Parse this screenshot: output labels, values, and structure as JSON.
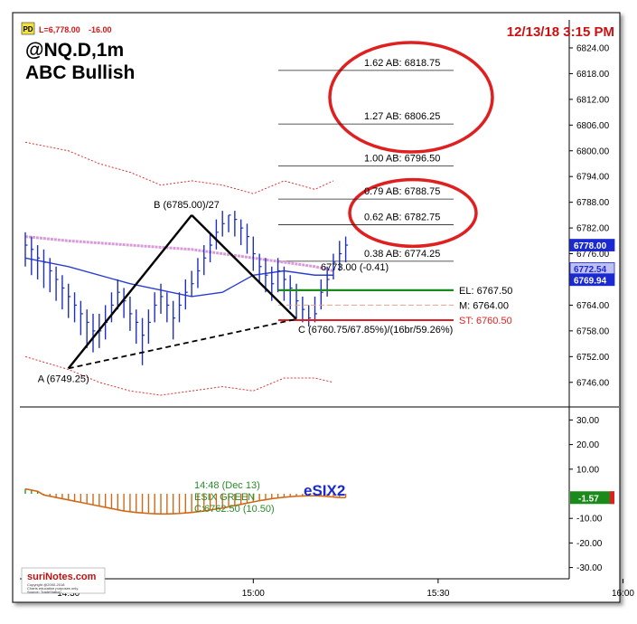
{
  "header": {
    "badge": "PD",
    "last_price": "L=6,778.00",
    "change": "-16.00",
    "timestamp": "12/13/18 3:15 PM",
    "symbol": "@NQ.D,1m",
    "pattern": "ABC Bullish"
  },
  "indicator": {
    "name": "eSIX2",
    "info_time": "14:48 (Dec 13)",
    "info_state": "ESIX GREEN",
    "info_price": "C:6762.50 (10.50)"
  },
  "logo": {
    "brand": "suriNotes.com",
    "line1": "Copyright @2000-2018",
    "line2": "Charts education purposes only.",
    "line3": "Source: TradeStation"
  },
  "colors": {
    "price_bar": "#1f2fbf",
    "ma_blue": "#2a3fd0",
    "ma_pink": "#d99ad9",
    "band_red": "#e03030",
    "pattern_line": "#000000",
    "entry_green": "#1a8a1a",
    "mid_salmon": "#e8a090",
    "stop_red": "#e02020",
    "osc_orange": "#d06a1a",
    "osc_green": "#2a9a2a",
    "highlight_red": "#e02020",
    "timestamp_red": "#cc1010"
  },
  "chart_data": [
    {
      "type": "line",
      "title": "@NQ.D,1m",
      "subtitle": "ABC Bullish",
      "x_ticks": [
        "14:30",
        "15:00",
        "15:30",
        "16:00"
      ],
      "y_ticks": [
        6746,
        6752,
        6758,
        6764,
        6770,
        6776,
        6782,
        6788,
        6794,
        6800,
        6806,
        6812,
        6818,
        6824
      ],
      "ylim": [
        6743,
        6828
      ],
      "xlim_minutes_after_1400": [
        23,
        106
      ],
      "grid": false,
      "price_path": {
        "x_minutes": [
          23,
          24,
          25,
          26,
          27,
          28,
          29,
          30,
          31,
          32,
          33,
          34,
          35,
          36,
          37,
          38,
          39,
          40,
          41,
          42,
          43,
          44,
          45,
          46,
          47,
          48,
          49,
          50,
          51,
          52,
          53,
          54,
          55,
          56,
          57,
          58,
          59,
          60,
          61,
          62,
          63,
          64,
          65,
          66,
          67,
          68,
          69,
          70,
          71,
          72,
          73,
          74,
          75
        ],
        "close": [
          6778,
          6777,
          6775,
          6774,
          6772,
          6770,
          6768,
          6766,
          6764,
          6762,
          6760,
          6758,
          6758,
          6760,
          6764,
          6767,
          6765,
          6762,
          6760,
          6757,
          6760,
          6764,
          6766,
          6764,
          6761,
          6764,
          6767,
          6769,
          6772,
          6775,
          6778,
          6781,
          6783,
          6785,
          6784,
          6782,
          6780,
          6776,
          6773,
          6771,
          6769,
          6772,
          6770,
          6768,
          6765,
          6763,
          6761,
          6762,
          6767,
          6770,
          6774,
          6776,
          6778
        ],
        "high": [
          6781,
          6780,
          6778,
          6777,
          6775,
          6773,
          6771,
          6769,
          6767,
          6765,
          6763,
          6762,
          6762,
          6764,
          6767,
          6770,
          6768,
          6766,
          6763,
          6761,
          6763,
          6767,
          6769,
          6767,
          6765,
          6767,
          6770,
          6772,
          6775,
          6778,
          6781,
          6784,
          6786,
          6785,
          6786,
          6784,
          6783,
          6780,
          6776,
          6775,
          6773,
          6775,
          6773,
          6771,
          6769,
          6766,
          6764,
          6766,
          6770,
          6773,
          6776,
          6779,
          6780
        ],
        "low": [
          6773,
          6771,
          6770,
          6768,
          6767,
          6765,
          6763,
          6761,
          6760,
          6757,
          6754,
          6753,
          6754,
          6756,
          6760,
          6763,
          6761,
          6758,
          6755,
          6750,
          6755,
          6760,
          6762,
          6760,
          6756,
          6760,
          6763,
          6766,
          6768,
          6771,
          6774,
          6777,
          6780,
          6781,
          6780,
          6778,
          6776,
          6772,
          6769,
          6767,
          6765,
          6767,
          6765,
          6763,
          6761,
          6760,
          6759,
          6760,
          6763,
          6766,
          6770,
          6772,
          6774
        ]
      },
      "series": [
        {
          "kind": "ma",
          "x_minutes": [
            23,
            30,
            40,
            50,
            55,
            60,
            65,
            70,
            73
          ],
          "values": [
            6775,
            6773,
            6769,
            6766,
            6767,
            6771,
            6772,
            6771,
            6771
          ]
        },
        {
          "kind": "ma",
          "x_minutes": [
            23,
            30,
            40,
            50,
            55,
            60,
            65,
            70,
            73
          ],
          "values": [
            6780,
            6779,
            6778,
            6777,
            6776,
            6775,
            6774,
            6773,
            6772
          ]
        },
        {
          "kind": "band",
          "x_minutes": [
            23,
            30,
            35,
            40,
            45,
            50,
            55,
            60,
            65,
            70,
            73
          ],
          "values": [
            6802,
            6800,
            6797,
            6795,
            6792,
            6793,
            6792,
            6790,
            6793,
            6791,
            6793
          ]
        },
        {
          "kind": "band",
          "x_minutes": [
            23,
            30,
            35,
            40,
            45,
            50,
            55,
            60,
            65,
            70,
            73
          ],
          "values": [
            6752,
            6749,
            6746,
            6744,
            6743,
            6744,
            6745,
            6744,
            6747,
            6747,
            6746
          ]
        }
      ],
      "pattern": {
        "A": {
          "x_minutes": 30,
          "price": 6749.25,
          "label": "A (6749.25)"
        },
        "B": {
          "x_minutes": 50,
          "price": 6785.0,
          "label": "B (6785.00)/27"
        },
        "C": {
          "x_minutes": 67,
          "price": 6760.75,
          "label": "C (6760.75/67.85%)/(16br/59.26%)"
        }
      },
      "fib_levels": [
        {
          "label": "1.62 AB: 6818.75",
          "price": 6818.75
        },
        {
          "label": "1.27 AB: 6806.25",
          "price": 6806.25
        },
        {
          "label": "1.00 AB: 6796.50",
          "price": 6796.5
        },
        {
          "label": "0.79 AB: 6788.75",
          "price": 6788.75
        },
        {
          "label": "0.62 AB: 6782.75",
          "price": 6782.75
        },
        {
          "label": "0.38 AB: 6774.25",
          "price": 6774.25
        }
      ],
      "trade_levels": [
        {
          "label": "EL: 6767.50",
          "price": 6767.5,
          "role": "entry"
        },
        {
          "label": "M: 6764.00",
          "price": 6764.0,
          "role": "mid"
        },
        {
          "label": "ST: 6760.50",
          "price": 6760.5,
          "role": "stop"
        }
      ],
      "annotation_last": "6773.00 (-0.41)",
      "price_tags": [
        {
          "label": "6778.00",
          "price": 6778.0,
          "color": "#1a2ad0"
        },
        {
          "label": "6772.54",
          "price": 6772.54,
          "color": "#c0c0f0"
        },
        {
          "label": "6769.94",
          "price": 6769.94,
          "color": "#1a2ad0"
        }
      ],
      "highlights": [
        {
          "from_price": 6801,
          "to_price": 6824
        },
        {
          "from_price": 6779,
          "to_price": 6792
        }
      ]
    },
    {
      "type": "bar",
      "title": "eSIX2",
      "y_ticks": [
        30,
        20,
        10,
        -10,
        -20,
        -30
      ],
      "ylim": [
        -33,
        36
      ],
      "zero_line": 0,
      "last_value_tag": "-1.57",
      "x_minutes": [
        23,
        24,
        25,
        26,
        27,
        28,
        29,
        30,
        31,
        32,
        33,
        34,
        35,
        36,
        37,
        38,
        39,
        40,
        41,
        42,
        43,
        44,
        45,
        46,
        47,
        48,
        49,
        50,
        51,
        52,
        53,
        54,
        55,
        56,
        57,
        58,
        59,
        60,
        61,
        62,
        63,
        64,
        65,
        66,
        67,
        68,
        69,
        70,
        71,
        72,
        73,
        74,
        75
      ],
      "values": [
        2,
        1.5,
        1,
        -0.5,
        -1,
        -1.5,
        -2,
        -2.5,
        -3,
        -3.5,
        -4,
        -4.5,
        -5,
        -5.5,
        -6,
        -6.5,
        -7,
        -7.3,
        -7.6,
        -7.8,
        -8,
        -8.1,
        -8.2,
        -8.2,
        -8.1,
        -8,
        -7.8,
        -7.6,
        -7.3,
        -7,
        -6.6,
        -6.2,
        -5.8,
        -5.3,
        -4.8,
        -4.3,
        -3.8,
        -3.3,
        -2.8,
        -2.4,
        -2,
        -1.7,
        -1.4,
        -1.2,
        -1,
        -0.9,
        -0.8,
        -0.8,
        -0.9,
        -1.1,
        -1.3,
        -1.5,
        -1.57
      ],
      "series_colors_note": "orange when negative, green when positive"
    }
  ]
}
